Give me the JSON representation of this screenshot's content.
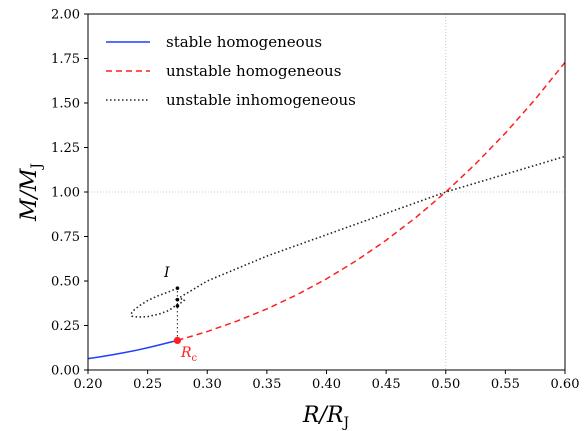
{
  "chart_data": {
    "type": "line",
    "title": "",
    "xlabel": "R/R_J",
    "ylabel": "M/M_J",
    "xlim": [
      0.2,
      0.6
    ],
    "ylim": [
      0.0,
      2.0
    ],
    "xticks": [
      "0.20",
      "0.25",
      "0.30",
      "0.35",
      "0.40",
      "0.45",
      "0.50",
      "0.55",
      "0.60"
    ],
    "yticks": [
      "0.00",
      "0.25",
      "0.50",
      "0.75",
      "1.00",
      "1.25",
      "1.50",
      "1.75",
      "2.00"
    ],
    "reference_lines": {
      "x": 0.5,
      "y": 1.0
    },
    "legend_position": "top-left",
    "series": [
      {
        "name": "stable homogeneous",
        "style": "solid",
        "color": "#1f3fff",
        "x": [
          0.2,
          0.21,
          0.22,
          0.23,
          0.24,
          0.25,
          0.26,
          0.27,
          0.275
        ],
        "y": [
          0.064,
          0.074,
          0.085,
          0.097,
          0.11,
          0.125,
          0.141,
          0.158,
          0.166
        ]
      },
      {
        "name": "unstable homogeneous",
        "style": "dashed",
        "color": "#ff1f1f",
        "x": [
          0.275,
          0.3,
          0.325,
          0.35,
          0.375,
          0.4,
          0.425,
          0.45,
          0.475,
          0.5,
          0.525,
          0.55,
          0.575,
          0.6
        ],
        "y": [
          0.166,
          0.216,
          0.275,
          0.343,
          0.422,
          0.512,
          0.614,
          0.729,
          0.857,
          1.0,
          1.158,
          1.331,
          1.521,
          1.728
        ]
      },
      {
        "name": "unstable inhomogeneous",
        "style": "dotted",
        "color": "#222222",
        "x": [
          0.275,
          0.268,
          0.258,
          0.25,
          0.244,
          0.239,
          0.236,
          0.237,
          0.242,
          0.25,
          0.26,
          0.268,
          0.273,
          0.277,
          0.28,
          0.281,
          0.278,
          0.275,
          0.3,
          0.35,
          0.4,
          0.45,
          0.5,
          0.55,
          0.6
        ],
        "y": [
          0.46,
          0.44,
          0.415,
          0.39,
          0.365,
          0.34,
          0.315,
          0.302,
          0.297,
          0.3,
          0.315,
          0.335,
          0.36,
          0.375,
          0.385,
          0.395,
          0.4,
          0.4,
          0.5,
          0.64,
          0.76,
          0.88,
          1.0,
          1.1,
          1.2
        ]
      }
    ],
    "markers": [
      {
        "x": 0.275,
        "y": 0.166,
        "color": "#ff1f1f",
        "label": "R_c"
      },
      {
        "x": 0.275,
        "y": 0.46,
        "color": "#000000",
        "label": "I"
      },
      {
        "x": 0.275,
        "y": 0.395,
        "color": "#000000",
        "label": ""
      },
      {
        "x": 0.275,
        "y": 0.36,
        "color": "#000000",
        "label": ""
      }
    ],
    "vertical_link": {
      "x": 0.275,
      "y_from": 0.166,
      "y_to": 0.46
    }
  },
  "labels": {
    "xlabel_main": "R/R",
    "xlabel_sub": "J",
    "ylabel_main": "M/M",
    "ylabel_sub": "J",
    "rc_main": "R",
    "rc_sub": "c",
    "i_label": "I"
  }
}
